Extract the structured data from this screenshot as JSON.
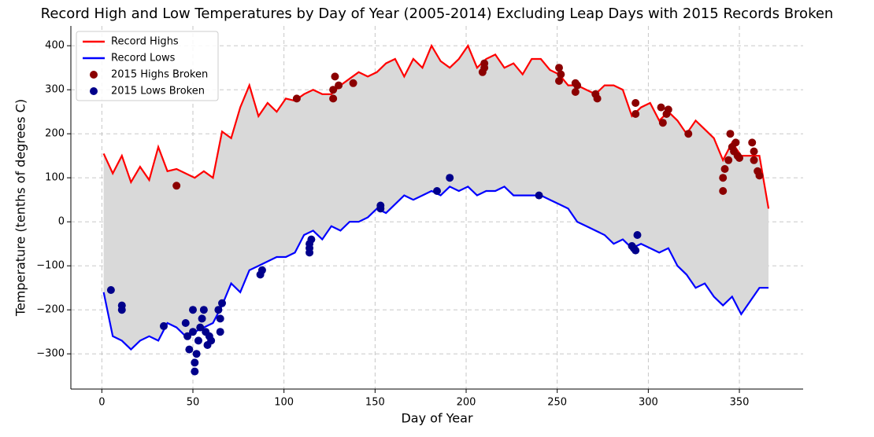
{
  "chart_data": {
    "type": "line",
    "title": "Record High and Low Temperatures by Day of Year (2005-2014) Excluding Leap Days with 2015 Records Broken",
    "x_label": "Day of Year",
    "y_label": "Temperature (tenths of degrees C)",
    "xlim": [
      -17,
      385
    ],
    "ylim": [
      -380,
      445
    ],
    "xticks": [
      0,
      50,
      100,
      150,
      200,
      250,
      300,
      350
    ],
    "yticks": [
      {
        "value": -300,
        "label": "−300"
      },
      {
        "value": -200,
        "label": "−200"
      },
      {
        "value": -100,
        "label": "−100"
      },
      0,
      100,
      200,
      300,
      400
    ],
    "grid": true,
    "legend": "upper left",
    "fill_between": "#d9d9d9",
    "x": [
      1,
      6,
      11,
      16,
      21,
      26,
      31,
      36,
      41,
      46,
      51,
      56,
      61,
      66,
      71,
      76,
      81,
      86,
      91,
      96,
      101,
      106,
      111,
      116,
      121,
      126,
      131,
      136,
      141,
      146,
      151,
      156,
      161,
      166,
      171,
      176,
      181,
      186,
      191,
      196,
      201,
      206,
      211,
      216,
      221,
      226,
      231,
      236,
      241,
      246,
      251,
      256,
      261,
      266,
      271,
      276,
      281,
      286,
      291,
      296,
      301,
      306,
      311,
      316,
      321,
      326,
      331,
      336,
      341,
      346,
      351,
      356,
      361,
      366
    ],
    "series": [
      {
        "name": "Record Highs",
        "color": "#ff0000",
        "kind": "line",
        "values": [
          155,
          110,
          150,
          90,
          125,
          95,
          170,
          115,
          120,
          110,
          100,
          115,
          100,
          205,
          190,
          260,
          310,
          240,
          270,
          250,
          280,
          275,
          290,
          300,
          290,
          290,
          310,
          325,
          340,
          330,
          340,
          360,
          370,
          330,
          370,
          350,
          400,
          365,
          350,
          370,
          400,
          350,
          370,
          380,
          350,
          360,
          335,
          370,
          370,
          345,
          335,
          310,
          310,
          300,
          290,
          310,
          310,
          300,
          240,
          260,
          270,
          230,
          250,
          230,
          200,
          230,
          210,
          190,
          140,
          180,
          150,
          150,
          150,
          30
        ]
      },
      {
        "name": "Record Lows",
        "color": "#0000ff",
        "kind": "line",
        "values": [
          -160,
          -260,
          -270,
          -290,
          -270,
          -260,
          -270,
          -230,
          -240,
          -260,
          -250,
          -240,
          -230,
          -190,
          -140,
          -160,
          -110,
          -100,
          -90,
          -80,
          -80,
          -70,
          -30,
          -20,
          -40,
          -10,
          -20,
          0,
          0,
          10,
          30,
          20,
          40,
          60,
          50,
          60,
          70,
          60,
          80,
          70,
          80,
          60,
          70,
          70,
          80,
          60,
          60,
          60,
          60,
          50,
          40,
          30,
          0,
          -10,
          -20,
          -30,
          -50,
          -40,
          -60,
          -50,
          -60,
          -70,
          -60,
          -100,
          -120,
          -150,
          -140,
          -170,
          -190,
          -170,
          -210,
          -180,
          -150,
          -150
        ]
      },
      {
        "name": "2015 Highs Broken",
        "color": "#8b0000",
        "kind": "scatter",
        "x": [
          41,
          107,
          127,
          127,
          128,
          130,
          138,
          209,
          210,
          210,
          251,
          251,
          252,
          260,
          260,
          261,
          271,
          272,
          293,
          293,
          307,
          308,
          310,
          311,
          322,
          341,
          341,
          342,
          344,
          345,
          346,
          347,
          348,
          349,
          350,
          357,
          358,
          358,
          360,
          361
        ],
        "values": [
          82,
          280,
          300,
          280,
          330,
          310,
          315,
          340,
          350,
          360,
          350,
          320,
          335,
          315,
          295,
          310,
          290,
          280,
          270,
          245,
          260,
          225,
          245,
          255,
          200,
          70,
          100,
          120,
          140,
          200,
          170,
          160,
          180,
          150,
          145,
          180,
          160,
          140,
          115,
          105
        ]
      },
      {
        "name": "2015 Lows Broken",
        "color": "#00008b",
        "kind": "scatter",
        "x": [
          5,
          11,
          11,
          34,
          46,
          47,
          48,
          50,
          50,
          51,
          51,
          52,
          53,
          54,
          55,
          56,
          57,
          58,
          59,
          60,
          64,
          65,
          65,
          66,
          87,
          88,
          114,
          114,
          114,
          115,
          153,
          153,
          184,
          191,
          240,
          291,
          292,
          293,
          294
        ],
        "values": [
          -155,
          -190,
          -200,
          -237,
          -230,
          -260,
          -290,
          -200,
          -250,
          -340,
          -320,
          -300,
          -270,
          -240,
          -220,
          -200,
          -250,
          -280,
          -260,
          -270,
          -200,
          -220,
          -250,
          -185,
          -120,
          -110,
          -50,
          -60,
          -70,
          -40,
          30,
          37,
          70,
          100,
          60,
          -55,
          -60,
          -65,
          -30
        ]
      }
    ]
  }
}
